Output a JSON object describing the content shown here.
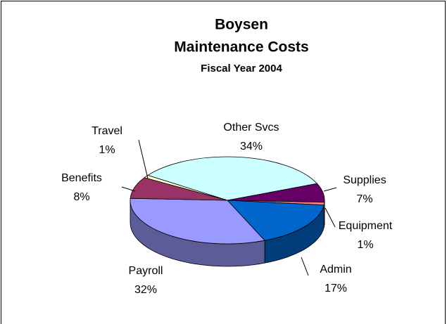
{
  "chart_data": {
    "type": "pie3d",
    "title": [
      "Boysen",
      "Maintenance Costs"
    ],
    "subtitle": "Fiscal Year 2004",
    "categories": [
      "Other Svcs",
      "Supplies",
      "Equipment",
      "Admin",
      "Payroll",
      "Benefits",
      "Travel"
    ],
    "values": [
      34,
      7,
      1,
      17,
      32,
      8,
      1
    ],
    "value_labels": [
      "34%",
      "7%",
      "1%",
      "17%",
      "32%",
      "8%",
      "1%"
    ],
    "colors": [
      "#ccffff",
      "#660066",
      "#ff8080",
      "#0066cc",
      "#9999ff",
      "#993366",
      "#ffffcc"
    ]
  }
}
